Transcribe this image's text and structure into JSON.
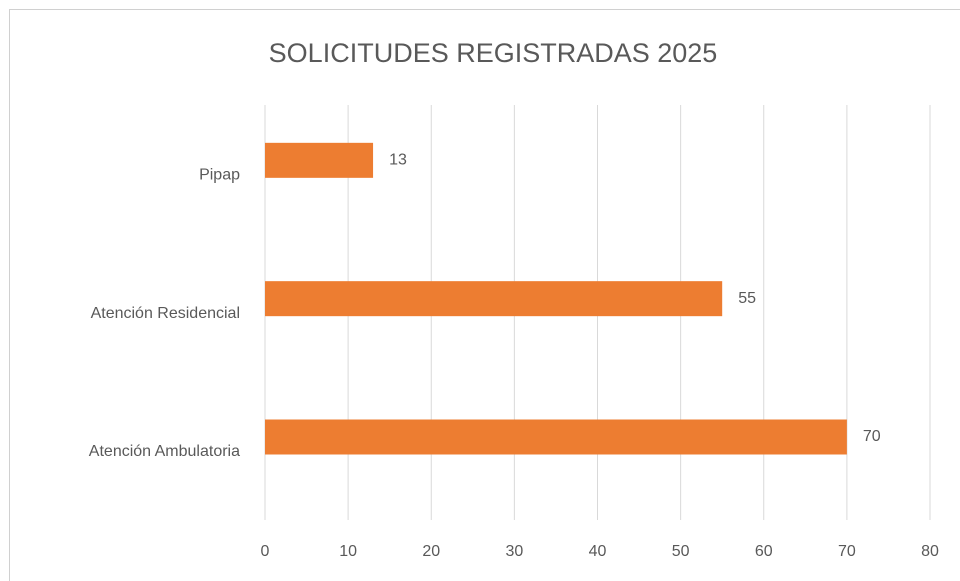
{
  "chart_data": {
    "type": "bar",
    "orientation": "horizontal",
    "title": "SOLICITUDES REGISTRADAS 2025",
    "categories": [
      "Pipap",
      "Atención Residencial",
      "Atención Ambulatoria"
    ],
    "values": [
      13,
      55,
      70
    ],
    "color": "#ed7d31",
    "xlim": [
      0,
      80
    ],
    "xticks": [
      0,
      10,
      20,
      30,
      40,
      50,
      60,
      70,
      80
    ],
    "grid": true
  }
}
